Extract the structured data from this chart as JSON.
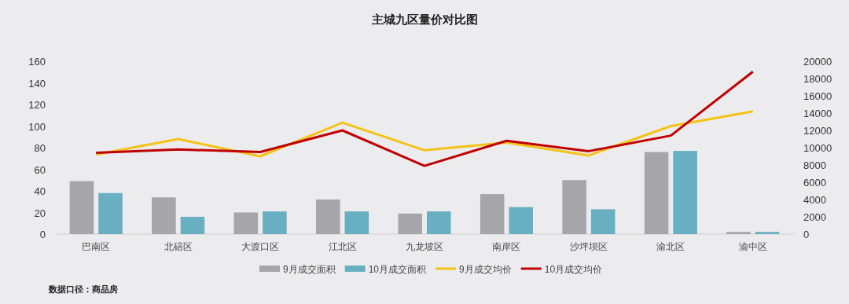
{
  "chart_data": {
    "type": "bar",
    "title": "主城九区量价对比图",
    "categories": [
      "巴南区",
      "北碚区",
      "大渡口区",
      "江北区",
      "九龙坡区",
      "南岸区",
      "沙坪坝区",
      "渝北区",
      "渝中区"
    ],
    "series": [
      {
        "name": "9月成交面积",
        "color": "#a6a6aa",
        "values": [
          49,
          34,
          20,
          32,
          19,
          37,
          50,
          76,
          2
        ]
      },
      {
        "name": "10月成交面积",
        "color": "#68afc2",
        "values": [
          38,
          16,
          21,
          21,
          21,
          25,
          23,
          77,
          2
        ]
      },
      {
        "name": "9月成交均价",
        "type": "line",
        "axis": "y2",
        "color": "#f5c216",
        "values": [
          9200,
          11000,
          9000,
          12900,
          9700,
          10600,
          9100,
          12500,
          14200
        ]
      },
      {
        "name": "10月成交均价",
        "type": "line",
        "axis": "y2",
        "color": "#c00000",
        "values": [
          9400,
          9800,
          9500,
          12000,
          7900,
          10800,
          9600,
          11400,
          18800
        ]
      }
    ],
    "ylim": [
      0,
      160
    ],
    "yticks": [
      0,
      20,
      40,
      60,
      80,
      100,
      120,
      140,
      160
    ],
    "y2lim": [
      0,
      20000
    ],
    "y2ticks": [
      0,
      2000,
      4000,
      6000,
      8000,
      10000,
      12000,
      14000,
      16000,
      18000,
      20000
    ],
    "legend": "bottom",
    "grid": false,
    "annotations": [
      "数据口径：商品房"
    ]
  }
}
